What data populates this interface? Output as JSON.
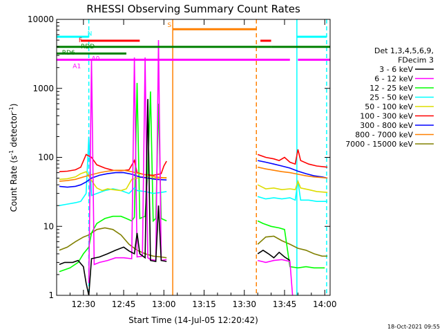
{
  "chart_data": {
    "type": "line",
    "title": "RHESSI Observing Summary Count Rates",
    "xlabel": "Start Time (14-Jul-05 12:20:42)",
    "ylabel_main": "Count Rate (s",
    "ylabel_sup1": "-1",
    "ylabel_mid": " detector",
    "ylabel_sup2": "-1",
    "ylabel_end": ")",
    "ylog": true,
    "ylim": [
      1,
      10000
    ],
    "xlim_min": [
      740,
      842
    ],
    "x_ticks": [
      {
        "m": 750,
        "label": "12:30"
      },
      {
        "m": 765,
        "label": "12:45"
      },
      {
        "m": 780,
        "label": "13:00"
      },
      {
        "m": 795,
        "label": "13:15"
      },
      {
        "m": 810,
        "label": "13:30"
      },
      {
        "m": 825,
        "label": "13:45"
      },
      {
        "m": 840,
        "label": "14:00"
      }
    ],
    "y_ticks": [
      {
        "v": 1,
        "label": "1"
      },
      {
        "v": 10,
        "label": "10"
      },
      {
        "v": 100,
        "label": "100"
      },
      {
        "v": 1000,
        "label": "1000"
      },
      {
        "v": 10000,
        "label": "10000"
      }
    ],
    "legend": {
      "header": [
        "Det 1,3,4,5,6,9,",
        "FDecim 3"
      ],
      "entries": [
        {
          "label": "3 - 6 keV",
          "color": "#000000"
        },
        {
          "label": "6 - 12 keV",
          "color": "#ff00ff"
        },
        {
          "label": "12 - 25 keV",
          "color": "#00ff00"
        },
        {
          "label": "25 - 50 keV",
          "color": "#00ffff"
        },
        {
          "label": "50 - 100 keV",
          "color": "#dddd00"
        },
        {
          "label": "100 - 300 keV",
          "color": "#ff0000"
        },
        {
          "label": "300 - 800 keV",
          "color": "#0000ff"
        },
        {
          "label": "800 - 7000 keV",
          "color": "#ff8000"
        },
        {
          "label": "7000 - 15000 keV",
          "color": "#808000"
        }
      ]
    },
    "vlines": [
      {
        "m": 752.0,
        "color": "#00ffff",
        "style": "dashed"
      },
      {
        "m": 783.3,
        "color": "#ff8000",
        "style": "solid"
      },
      {
        "m": 814.5,
        "color": "#ff8000",
        "style": "dashed"
      },
      {
        "m": 829.6,
        "color": "#00ffff",
        "style": "solid"
      },
      {
        "m": 840.7,
        "color": "#00ffff",
        "style": "dashed"
      }
    ],
    "flags": [
      {
        "label": "N",
        "color": "#00ffff",
        "level": 5600,
        "segments": [
          [
            740,
            752
          ],
          [
            829.6,
            840.7
          ]
        ],
        "label_m": 751.5,
        "label_at": 6200
      },
      {
        "label": "S",
        "color": "#ff8000",
        "level": 7200,
        "segments": [
          [
            783.3,
            814.5
          ]
        ],
        "label_m": 781.3,
        "label_at": 8300
      },
      {
        "label": "F",
        "color": "#ff0000",
        "level": 4900,
        "segments": [
          [
            749,
            771
          ],
          [
            816,
            820
          ]
        ],
        "label_m": 748.2,
        "label_at": 5000
      },
      {
        "label": "RDD",
        "color": "#008000",
        "level": 4000,
        "segments": [
          [
            740,
            815
          ],
          [
            815,
            820
          ],
          [
            820,
            842
          ]
        ],
        "label_m": 749,
        "label_at": 4050
      },
      {
        "label": "RD6",
        "color": "#008000",
        "level": 3200,
        "segments": [
          [
            740,
            766
          ]
        ],
        "label_m": 742,
        "label_at": 3300
      },
      {
        "label": "A0",
        "color": "#ff00ff",
        "level": 2600,
        "segments": [
          [
            740,
            827
          ],
          [
            830,
            842
          ]
        ],
        "label_m": 753,
        "label_at": 2700
      },
      {
        "label": "A1",
        "color": "#ff00ff",
        "level": 2150,
        "segments": [],
        "label_m": 746,
        "label_at": 2100
      }
    ],
    "series": [
      {
        "key": "s7000",
        "color": "#808000",
        "points": [
          [
            741,
            4.5
          ],
          [
            744,
            5
          ],
          [
            747,
            6
          ],
          [
            750,
            7
          ],
          [
            752,
            7.5
          ],
          [
            755,
            9
          ],
          [
            758,
            9.5
          ],
          [
            761,
            9
          ],
          [
            764,
            7.5
          ],
          [
            767,
            5.5
          ],
          [
            770,
            4.5
          ],
          [
            773,
            4
          ],
          [
            776,
            3.7
          ],
          [
            779,
            3.6
          ],
          [
            781,
            3.5
          ],
          [
            815,
            5.5
          ],
          [
            818,
            7
          ],
          [
            821,
            7.2
          ],
          [
            824,
            6.2
          ],
          [
            827,
            5.5
          ],
          [
            830,
            4.8
          ],
          [
            833,
            4.5
          ],
          [
            836,
            4
          ],
          [
            839,
            3.7
          ],
          [
            841,
            3.7
          ]
        ]
      },
      {
        "key": "s12",
        "color": "#00ff00",
        "points": [
          [
            741,
            2.2
          ],
          [
            745,
            2.5
          ],
          [
            748,
            3
          ],
          [
            750,
            4
          ],
          [
            752,
            5
          ],
          [
            753,
            8
          ],
          [
            755,
            11
          ],
          [
            758,
            13
          ],
          [
            761,
            14
          ],
          [
            764,
            14
          ],
          [
            766,
            13
          ],
          [
            768,
            12
          ],
          [
            769,
            13.5
          ],
          [
            770,
            1200
          ],
          [
            771,
            13
          ],
          [
            773,
            14
          ],
          [
            774,
            60
          ],
          [
            775,
            900
          ],
          [
            776,
            12
          ],
          [
            777,
            13
          ],
          [
            778,
            600
          ],
          [
            779,
            13
          ],
          [
            781,
            12
          ],
          [
            815,
            12
          ],
          [
            817,
            11
          ],
          [
            820,
            10
          ],
          [
            823,
            9.5
          ],
          [
            825,
            9
          ],
          [
            827,
            2.6
          ],
          [
            830,
            2.5
          ],
          [
            833,
            2.6
          ],
          [
            836,
            2.5
          ],
          [
            840,
            2.5
          ]
        ]
      },
      {
        "key": "s25",
        "color": "#00ffff",
        "points": [
          [
            741,
            20
          ],
          [
            744,
            21
          ],
          [
            747,
            22
          ],
          [
            749,
            23
          ],
          [
            751,
            30
          ],
          [
            752,
            200
          ],
          [
            753,
            28
          ],
          [
            755,
            30
          ],
          [
            758,
            33
          ],
          [
            761,
            35
          ],
          [
            764,
            33
          ],
          [
            767,
            30
          ],
          [
            769,
            36
          ],
          [
            770,
            33
          ],
          [
            773,
            32
          ],
          [
            776,
            30
          ],
          [
            779,
            31
          ],
          [
            781,
            32
          ],
          [
            815,
            27
          ],
          [
            818,
            25
          ],
          [
            821,
            26
          ],
          [
            824,
            25
          ],
          [
            827,
            26
          ],
          [
            829,
            24
          ],
          [
            830,
            45
          ],
          [
            831,
            24
          ],
          [
            834,
            24
          ],
          [
            837,
            23
          ],
          [
            841,
            23
          ]
        ]
      },
      {
        "key": "s50",
        "color": "#dddd00",
        "points": [
          [
            741,
            48
          ],
          [
            744,
            49
          ],
          [
            747,
            52
          ],
          [
            749,
            58
          ],
          [
            751,
            62
          ],
          [
            753,
            46
          ],
          [
            755,
            36
          ],
          [
            757,
            33
          ],
          [
            759,
            35
          ],
          [
            761,
            34
          ],
          [
            764,
            33
          ],
          [
            766,
            35
          ],
          [
            768,
            48
          ],
          [
            770,
            50
          ],
          [
            772,
            52
          ],
          [
            775,
            50
          ],
          [
            778,
            50
          ],
          [
            781,
            51
          ],
          [
            815,
            40
          ],
          [
            818,
            35
          ],
          [
            821,
            36
          ],
          [
            824,
            34
          ],
          [
            827,
            35
          ],
          [
            829,
            34
          ],
          [
            830,
            45
          ],
          [
            831,
            36
          ],
          [
            834,
            34
          ],
          [
            837,
            32
          ],
          [
            841,
            31
          ]
        ]
      },
      {
        "key": "s100",
        "color": "#ff0000",
        "points": [
          [
            741,
            62
          ],
          [
            744,
            63
          ],
          [
            747,
            66
          ],
          [
            749,
            72
          ],
          [
            751,
            110
          ],
          [
            753,
            100
          ],
          [
            755,
            78
          ],
          [
            758,
            70
          ],
          [
            761,
            65
          ],
          [
            764,
            64
          ],
          [
            767,
            66
          ],
          [
            769,
            90
          ],
          [
            770,
            60
          ],
          [
            773,
            56
          ],
          [
            776,
            55
          ],
          [
            779,
            58
          ],
          [
            780,
            75
          ],
          [
            781,
            88
          ],
          [
            815,
            110
          ],
          [
            818,
            100
          ],
          [
            821,
            95
          ],
          [
            823,
            90
          ],
          [
            825,
            100
          ],
          [
            827,
            85
          ],
          [
            829,
            80
          ],
          [
            830,
            130
          ],
          [
            831,
            90
          ],
          [
            834,
            80
          ],
          [
            837,
            75
          ],
          [
            841,
            72
          ]
        ]
      },
      {
        "key": "s300",
        "color": "#0000ff",
        "points": [
          [
            741,
            38
          ],
          [
            744,
            37
          ],
          [
            747,
            38
          ],
          [
            749,
            40
          ],
          [
            751,
            44
          ],
          [
            753,
            50
          ],
          [
            756,
            55
          ],
          [
            759,
            58
          ],
          [
            762,
            60
          ],
          [
            765,
            60
          ],
          [
            768,
            57
          ],
          [
            771,
            52
          ],
          [
            774,
            50
          ],
          [
            777,
            48
          ],
          [
            781,
            47
          ],
          [
            815,
            90
          ],
          [
            818,
            85
          ],
          [
            821,
            80
          ],
          [
            824,
            75
          ],
          [
            827,
            70
          ],
          [
            830,
            63
          ],
          [
            833,
            58
          ],
          [
            836,
            54
          ],
          [
            839,
            52
          ],
          [
            841,
            50
          ]
        ]
      },
      {
        "key": "s800",
        "color": "#ff8000",
        "points": [
          [
            741,
            45
          ],
          [
            744,
            46
          ],
          [
            747,
            48
          ],
          [
            750,
            52
          ],
          [
            753,
            56
          ],
          [
            756,
            60
          ],
          [
            759,
            63
          ],
          [
            762,
            65
          ],
          [
            765,
            65
          ],
          [
            768,
            62
          ],
          [
            771,
            58
          ],
          [
            774,
            55
          ],
          [
            777,
            52
          ],
          [
            781,
            50
          ],
          [
            815,
            72
          ],
          [
            818,
            68
          ],
          [
            821,
            65
          ],
          [
            824,
            62
          ],
          [
            827,
            60
          ],
          [
            830,
            57
          ],
          [
            833,
            54
          ],
          [
            836,
            52
          ],
          [
            839,
            51
          ],
          [
            841,
            50
          ]
        ]
      },
      {
        "key": "s6",
        "color": "#ff00ff",
        "points": [
          [
            752,
            1.5
          ],
          [
            753,
            2600
          ],
          [
            754,
            2.8
          ],
          [
            756,
            3
          ],
          [
            759,
            3.2
          ],
          [
            762,
            3.5
          ],
          [
            765,
            3.5
          ],
          [
            768,
            3.4
          ],
          [
            769,
            2800
          ],
          [
            770,
            3.6
          ],
          [
            772,
            3.7
          ],
          [
            773,
            2800
          ],
          [
            774,
            3.5
          ],
          [
            775,
            3.3
          ],
          [
            777,
            3.2
          ],
          [
            778,
            5000
          ],
          [
            779,
            3.2
          ],
          [
            781,
            3.3
          ],
          [
            815,
            3.2
          ],
          [
            818,
            3
          ],
          [
            821,
            3.2
          ],
          [
            824,
            3.3
          ],
          [
            827,
            3.1
          ],
          [
            828,
            1.0
          ]
        ]
      },
      {
        "key": "s3",
        "color": "#000000",
        "points": [
          [
            741,
            2.8
          ],
          [
            743,
            3
          ],
          [
            746,
            3
          ],
          [
            748,
            3.2
          ],
          [
            750,
            2.6
          ],
          [
            751,
            1.5
          ],
          [
            752,
            1.0
          ],
          [
            753,
            3.4
          ],
          [
            756,
            3.6
          ],
          [
            759,
            4
          ],
          [
            762,
            4.5
          ],
          [
            765,
            5
          ],
          [
            767,
            4.4
          ],
          [
            769,
            4
          ],
          [
            770,
            8
          ],
          [
            771,
            4
          ],
          [
            773,
            3.5
          ],
          [
            774,
            700
          ],
          [
            775,
            3.2
          ],
          [
            777,
            3.1
          ],
          [
            778,
            20
          ],
          [
            779,
            3.2
          ],
          [
            781,
            3.1
          ],
          [
            815,
            4
          ],
          [
            817,
            4.5
          ],
          [
            819,
            4
          ],
          [
            821,
            3.5
          ],
          [
            823,
            4.2
          ],
          [
            825,
            3.6
          ],
          [
            827,
            3.2
          ]
        ]
      }
    ]
  },
  "footer": {
    "date": "18-Oct-2021 09:55"
  }
}
